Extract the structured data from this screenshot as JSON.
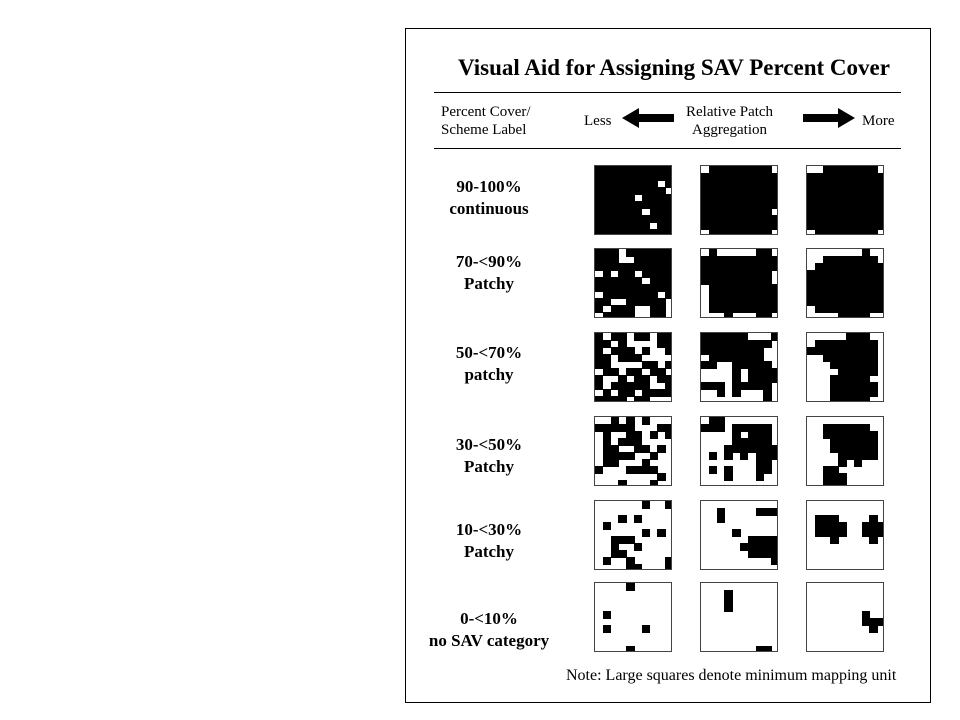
{
  "title": "Visual Aid for Assigning SAV Percent Cover",
  "header": {
    "left_label": [
      "Percent Cover/",
      "Scheme Label"
    ],
    "less_label": "Less",
    "middle_label": [
      "Relative Patch",
      "Aggregation"
    ],
    "more_label": "More"
  },
  "colors": {
    "fill": "#000000",
    "background": "#ffffff",
    "border": "#444444"
  },
  "rows": [
    {
      "label": [
        "90-100%",
        "continuous"
      ],
      "cover_min": 90,
      "cover_max": 100
    },
    {
      "label": [
        "70-<90%",
        "Patchy"
      ],
      "cover_min": 70,
      "cover_max": 90
    },
    {
      "label": [
        "50-<70%",
        "patchy"
      ],
      "cover_min": 50,
      "cover_max": 70
    },
    {
      "label": [
        "30-<50%",
        "Patchy"
      ],
      "cover_min": 30,
      "cover_max": 50
    },
    {
      "label": [
        "10-<30%",
        "Patchy"
      ],
      "cover_min": 10,
      "cover_max": 30
    },
    {
      "label": [
        "0-<10%",
        "no SAV category"
      ],
      "cover_min": 0,
      "cover_max": 10
    }
  ],
  "note": "Note: Large squares denote minimum mapping unit"
}
